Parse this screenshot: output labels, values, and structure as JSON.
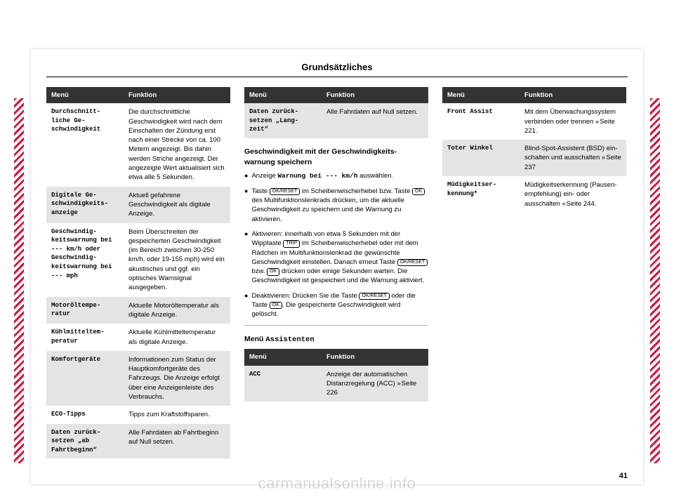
{
  "page": {
    "title": "Grundsätzliches",
    "number": "41",
    "watermark": "carmanualsonline.info"
  },
  "headers": {
    "menu": "Menü",
    "function": "Funktion"
  },
  "col1_rows": [
    {
      "alt": false,
      "menu": "Durchschnitt-\nliche Ge-\nschwindigkeit",
      "func": "Die durchschnittliche Geschwindigkeit wird nach dem Einschalten der Zündung erst nach einer Strecke von ca. 100 Metern angezeigt. Bis dahin werden Striche angezeigt. Der angezeigte Wert aktualisiert sich etwa alle 5 Sekunden."
    },
    {
      "alt": true,
      "menu": "Digitale Ge-\nschwindigkeits-\nanzeige",
      "func": "Aktuell gefahrene Geschwindigkeit als digitale Anzeige."
    },
    {
      "alt": false,
      "menu": "Geschwindig-\nkeitswarnung bei --- km/h\noder\nGeschwindig-\nkeitswarnung bei --- mph",
      "func": "Beim Überschreiten der gespeicherten Geschwindigkeit (im Bereich zwischen 30-250 km/h, oder 19-155 mph) wird ein akustisches und ggf. ein optisches Warnsignal ausgegeben."
    },
    {
      "alt": true,
      "menu": "Motoröltempe-\nratur",
      "func": "Aktuelle Motoröltemperatur als digitale Anzeige."
    },
    {
      "alt": false,
      "menu": "Kühlmitteltem-\nperatur",
      "func": "Aktuelle Kühlmitteltemperatur als digitale Anzeige."
    },
    {
      "alt": true,
      "menu": "Komfortgeräte",
      "func": "Informationen zum Status der Hauptkomfortgeräte des Fahrzeugs. Die Anzeige erfolgt über eine Anzeigenleiste des Verbrauchs."
    },
    {
      "alt": false,
      "menu": "ECO-Tipps",
      "func": "Tipps zum Kraftstoffsparen."
    },
    {
      "alt": true,
      "menu": "Daten zurück-\nsetzen „ab Fahrtbeginn“",
      "func": "Alle Fahrdaten ab Fahrtbeginn auf Null setzen."
    }
  ],
  "col2_top_row": {
    "menu": "Daten zurück-\nsetzen „Lang-\nzeit“",
    "func": "Alle Fahrdaten auf Null setzen."
  },
  "col2": {
    "heading": "Geschwindigkeit mit der Geschwindigkeits-\nwarnung speichern",
    "bullet1_pre": "Anzeige ",
    "bullet1_code": "Warnung bei --- km/h",
    "bullet1_post": " auswählen.",
    "bullet2_a": "Taste ",
    "bullet2_b": " im Scheibenwischerhebel bzw. Taste ",
    "bullet2_c": " des Multifunktionslenkrads drücken, um die aktuelle Geschwindigkeit zu speichern und die Warnung zu aktivieren.",
    "bullet3_a": "Aktivieren: innerhalb von etwa 5 Sekunden mit der Wipptaste ",
    "bullet3_b": " im Scheibenwischerhebel oder mit dem Rädchen im Multifunktionslenkrad die gewünschte Geschwindigkeit einstellen. Danach erneut Taste ",
    "bullet3_c": " bzw. ",
    "bullet3_d": " drücken oder einige Sekunden warten. Die Geschwindigkeit ist gespeichert und die Warnung aktiviert.",
    "bullet4_a": "Deaktivieren: Drücken Sie die Taste ",
    "bullet4_b": " oder die Taste ",
    "bullet4_c": ". Die gespeicherte Geschwindigkeit wird gelöscht.",
    "menu_heading_pre": "Menü ",
    "menu_heading_code": "Assistenten",
    "acc_row": {
      "menu": "ACC",
      "func_pre": "Anzeige der automatischen Distanzregelung (ACC) ",
      "func_ref": "Seite 226"
    }
  },
  "col3_rows": [
    {
      "alt": false,
      "menu": "Front Assist",
      "func_pre": "Mit dem Überwachungssystem verbinden oder trennen ",
      "func_ref": "Seite 221."
    },
    {
      "alt": true,
      "menu": "Toter Winkel",
      "func_pre": "Blind-Spot-Assistent (BSD) ein-schalten und ausschalten ",
      "func_ref": "Seite 237"
    },
    {
      "alt": false,
      "menu": "Müdigkeitser-\nkennung*",
      "func_pre": "Müdigkeitserkennung (Pausen-empfehlung) ein- oder ausschalten ",
      "func_ref": "Seite 244."
    }
  ],
  "btn": {
    "okreset": "OK/RESET",
    "ok": "OK",
    "trip": "TRIP"
  }
}
